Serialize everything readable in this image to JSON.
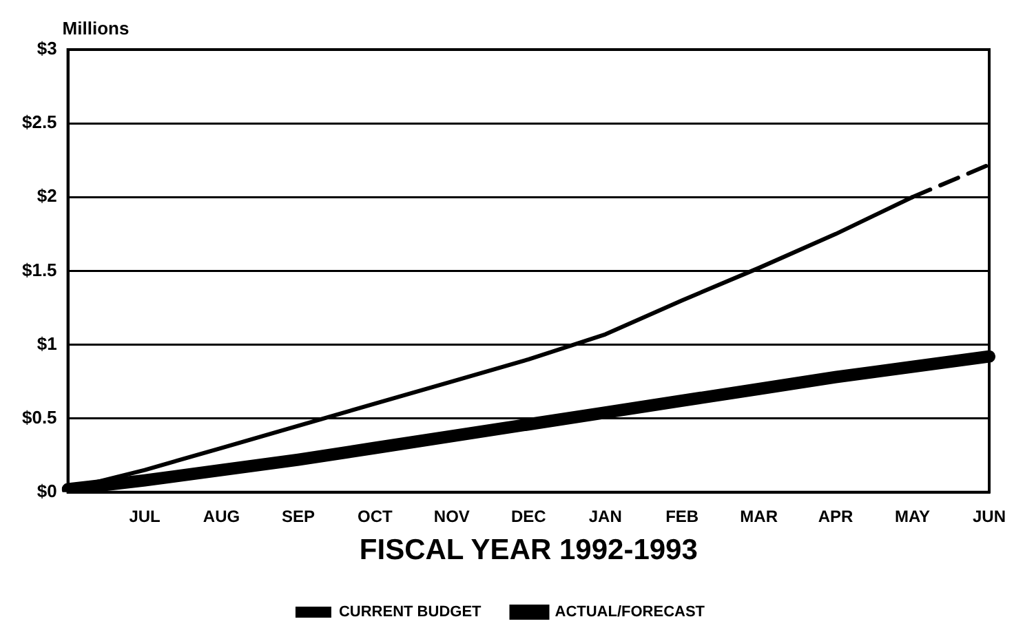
{
  "chart_data": {
    "type": "line",
    "xlabel": "FISCAL YEAR 1992-1993",
    "ylabel": "Millions",
    "categories": [
      null,
      "JUL",
      "AUG",
      "SEP",
      "OCT",
      "NOV",
      "DEC",
      "JAN",
      "FEB",
      "MAR",
      "APR",
      "MAY",
      "JUN"
    ],
    "series": [
      {
        "name": "CURRENT BUDGET",
        "color": "#000000",
        "values": [
          0.02,
          0.08,
          0.15,
          0.22,
          0.3,
          0.38,
          0.46,
          0.54,
          0.62,
          0.7,
          0.78,
          0.85,
          0.92
        ]
      },
      {
        "name": "ACTUAL/FORECAST",
        "color": "#000000",
        "values": [
          0.02,
          0.15,
          0.3,
          0.45,
          0.6,
          0.75,
          0.9,
          1.07,
          1.3,
          1.52,
          1.75,
          2.0,
          null
        ]
      },
      {
        "color": "#000000",
        "line_style": "dashed",
        "values": [
          null,
          null,
          null,
          null,
          null,
          null,
          null,
          null,
          null,
          null,
          null,
          2.0,
          2.22
        ]
      }
    ],
    "ylim": [
      0,
      3
    ],
    "yticks": [
      {
        "value": 0,
        "label": "$0"
      },
      {
        "value": 0.5,
        "label": "$0.5"
      },
      {
        "value": 1,
        "label": "$1"
      },
      {
        "value": 1.5,
        "label": "$1.5"
      },
      {
        "value": 2,
        "label": "$2"
      },
      {
        "value": 2.5,
        "label": "$2.5"
      },
      {
        "value": 3,
        "label": "$3"
      }
    ],
    "grid": "y",
    "legend": "bottom",
    "marker": "none",
    "line_style": "solid"
  }
}
